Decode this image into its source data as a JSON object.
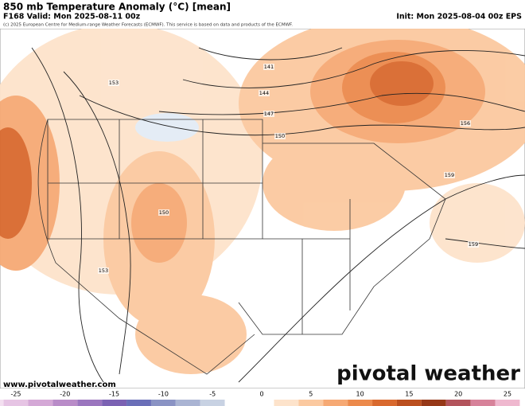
{
  "header": {
    "title": "850 mb Temperature Anomaly (°C) [mean]",
    "valid": "F168 Valid: Mon 2025-08-11 00z",
    "init": "Init: Mon 2025-08-04 00z EPS",
    "credit": "(c) 2025 European Centre for Medium-range Weather Forecasts (ECMWF). This service is based on data and products of the ECMWF."
  },
  "contour_labels": [
    "141",
    "144",
    "147",
    "150",
    "150",
    "153",
    "153",
    "156",
    "159",
    "159"
  ],
  "footer": {
    "url": "www.pivotalweather.com",
    "logo": "pivotal weather"
  },
  "colorbar": {
    "ticks": [
      -25,
      -20,
      -15,
      -10,
      -5,
      0,
      5,
      10,
      15,
      20,
      25
    ],
    "colors": [
      "#f3dff0",
      "#e6c4e4",
      "#d4a8d6",
      "#b98cc8",
      "#9b76bf",
      "#7b62b3",
      "#6a6fb8",
      "#8a93c4",
      "#aab4d3",
      "#c8d2e3",
      "#ffffff",
      "#ffffff",
      "#fde3cb",
      "#fbc9a0",
      "#f6a974",
      "#ec8a4c",
      "#d9692e",
      "#bb4f1f",
      "#963818",
      "#b3545c",
      "#d7829a",
      "#efb8cf"
    ]
  }
}
